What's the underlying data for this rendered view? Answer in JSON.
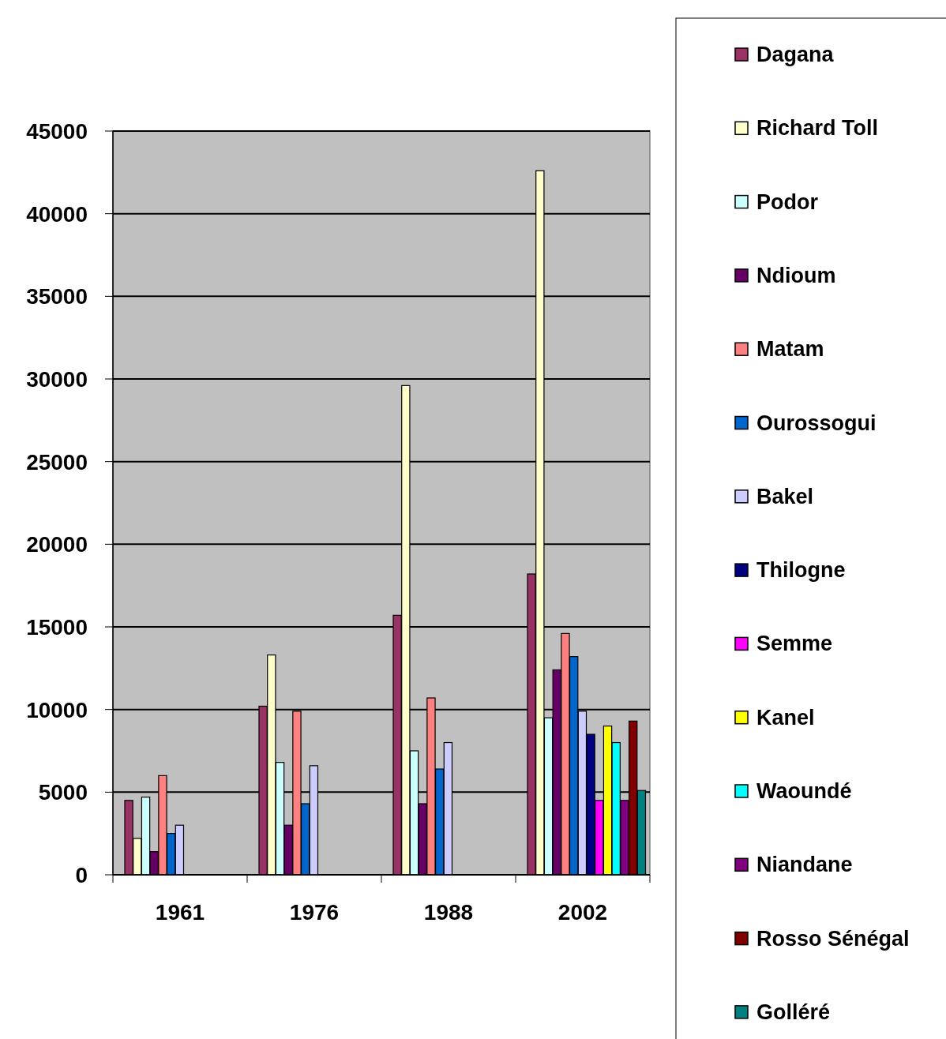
{
  "chart_data": {
    "type": "bar",
    "categories": [
      "1961",
      "1976",
      "1988",
      "2002"
    ],
    "ylim": [
      0,
      45000
    ],
    "yticks": [
      0,
      5000,
      10000,
      15000,
      20000,
      25000,
      30000,
      35000,
      40000,
      45000
    ],
    "grid": "y",
    "legend": "right",
    "series": [
      {
        "name": "Dagana",
        "color": "#993366",
        "values": [
          4500,
          10200,
          15700,
          18200
        ]
      },
      {
        "name": "Richard Toll",
        "color": "#ffffcc",
        "values": [
          2200,
          13300,
          29600,
          42600
        ]
      },
      {
        "name": "Podor",
        "color": "#ccffff",
        "values": [
          4700,
          6800,
          7500,
          9500
        ]
      },
      {
        "name": "Ndioum",
        "color": "#660066",
        "values": [
          1400,
          3000,
          4300,
          12400
        ]
      },
      {
        "name": "Matam",
        "color": "#ff8080",
        "values": [
          6000,
          9900,
          10700,
          14600
        ]
      },
      {
        "name": "Ourossogui",
        "color": "#0066cc",
        "values": [
          2500,
          4300,
          6400,
          13200
        ]
      },
      {
        "name": "Bakel",
        "color": "#ccccff",
        "values": [
          3000,
          6600,
          8000,
          9900
        ]
      },
      {
        "name": "Thilogne",
        "color": "#000080",
        "values": [
          null,
          null,
          null,
          8500
        ]
      },
      {
        "name": "Semme",
        "color": "#ff00ff",
        "values": [
          null,
          null,
          null,
          4500
        ]
      },
      {
        "name": "Kanel",
        "color": "#ffff00",
        "values": [
          null,
          null,
          null,
          9000
        ]
      },
      {
        "name": "Waoundé",
        "color": "#00ffff",
        "values": [
          null,
          null,
          null,
          8000
        ]
      },
      {
        "name": "Niandane",
        "color": "#800080",
        "values": [
          null,
          null,
          null,
          4500
        ]
      },
      {
        "name": "Rosso Sénégal",
        "color": "#800000",
        "values": [
          null,
          null,
          null,
          9300
        ]
      },
      {
        "name": "Golléré",
        "color": "#008080",
        "values": [
          null,
          null,
          null,
          5100
        ]
      }
    ]
  }
}
